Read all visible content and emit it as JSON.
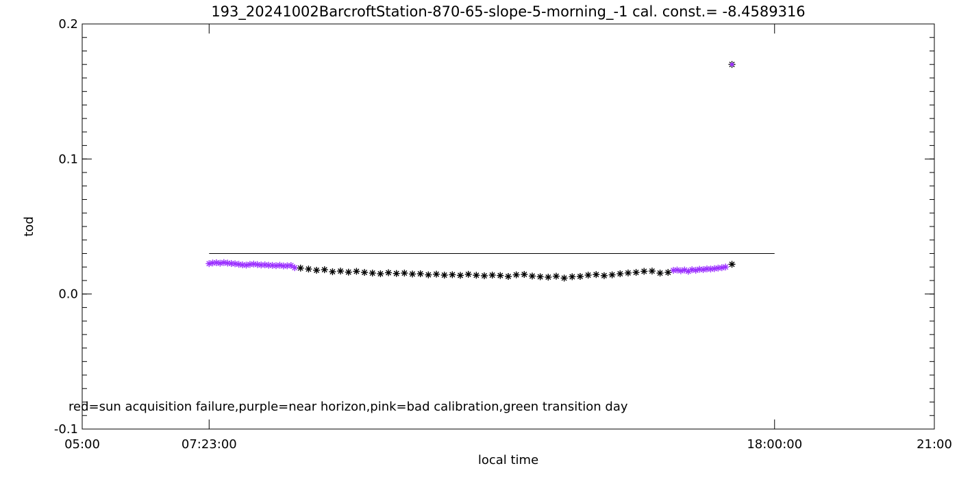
{
  "chart_data": {
    "type": "scatter",
    "title": "193_20241002BarcroftStation-870-65-slope-5-morning_-1 cal. const.= -8.4589316",
    "xlabel": "local time",
    "ylabel": "tod",
    "x_tick_labels": [
      "05:00",
      "07:23:00",
      "18:00:00",
      "21:00"
    ],
    "x_ticks_hours": [
      5.0,
      7.3833,
      18.0,
      21.0
    ],
    "xlim_hours": [
      5.0,
      21.0
    ],
    "y_tick_labels": [
      "-0.1",
      "0.0",
      "0.1",
      "0.2"
    ],
    "y_ticks": [
      -0.1,
      0.0,
      0.1,
      0.2
    ],
    "ylim": [
      -0.1,
      0.2
    ],
    "annotation": "red=sun acquisition failure,purple=near horizon,pink=bad calibration,green transition day",
    "reference_line": {
      "x": [
        7.3833,
        18.0
      ],
      "y": 0.03
    },
    "colors": {
      "normal": "#000000",
      "purple": "#9b30ff"
    },
    "series": [
      {
        "marker": "asterisk",
        "color": "#9b30ff",
        "x": [
          7.383,
          7.45,
          7.52,
          7.59,
          7.66,
          7.73,
          7.8,
          7.87,
          7.94,
          8.01,
          8.08,
          8.15,
          8.22,
          8.29,
          8.36,
          8.43,
          8.5,
          8.57,
          8.64,
          8.71,
          8.78,
          8.85,
          8.92,
          8.99,
          16.1,
          16.17,
          16.24,
          16.31,
          16.38,
          16.45,
          16.52,
          16.59,
          16.66,
          16.73,
          16.8,
          16.87,
          16.94,
          17.01,
          17.08
        ],
        "y": [
          0.0225,
          0.023,
          0.0232,
          0.0228,
          0.0233,
          0.0229,
          0.0226,
          0.0224,
          0.022,
          0.0216,
          0.0214,
          0.0219,
          0.0222,
          0.0218,
          0.0215,
          0.0216,
          0.0213,
          0.0212,
          0.021,
          0.0213,
          0.0208,
          0.0209,
          0.0211,
          0.0195,
          0.0175,
          0.0178,
          0.0172,
          0.0178,
          0.0168,
          0.018,
          0.0176,
          0.0183,
          0.0181,
          0.0186,
          0.0185,
          0.0188,
          0.0192,
          0.0195,
          0.02
        ]
      },
      {
        "marker": "asterisk",
        "color": "#000000",
        "x": [
          9.1,
          9.25,
          9.4,
          9.55,
          9.7,
          9.85,
          10.0,
          10.15,
          10.3,
          10.45,
          10.6,
          10.75,
          10.9,
          11.05,
          11.2,
          11.35,
          11.5,
          11.65,
          11.8,
          11.95,
          12.1,
          12.25,
          12.4,
          12.55,
          12.7,
          12.85,
          13.0,
          13.15,
          13.3,
          13.45,
          13.6,
          13.75,
          13.9,
          14.05,
          14.2,
          14.35,
          14.5,
          14.65,
          14.8,
          14.95,
          15.1,
          15.25,
          15.4,
          15.55,
          15.7,
          15.85,
          16.0,
          17.2
        ],
        "y": [
          0.0192,
          0.0185,
          0.0176,
          0.018,
          0.0165,
          0.017,
          0.0162,
          0.0168,
          0.016,
          0.0155,
          0.015,
          0.0158,
          0.0152,
          0.0155,
          0.0148,
          0.015,
          0.0142,
          0.0147,
          0.014,
          0.0143,
          0.0138,
          0.0146,
          0.0139,
          0.0135,
          0.014,
          0.0137,
          0.013,
          0.0142,
          0.0145,
          0.0133,
          0.0128,
          0.0125,
          0.0132,
          0.0118,
          0.0128,
          0.013,
          0.014,
          0.0144,
          0.0136,
          0.0142,
          0.015,
          0.0156,
          0.016,
          0.0168,
          0.017,
          0.0155,
          0.016,
          0.022
        ]
      },
      {
        "marker": "asterisk",
        "color": "#000000",
        "overlay_color": "#9b30ff",
        "x": [
          17.2
        ],
        "y": [
          0.17
        ]
      }
    ]
  }
}
